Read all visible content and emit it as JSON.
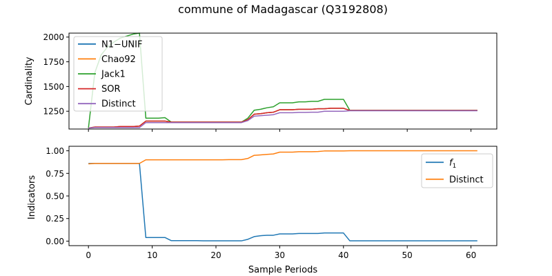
{
  "figure": {
    "title": "commune of Madagascar (Q3192808)"
  },
  "chart_data": [
    {
      "type": "line",
      "ylabel": "Cardinality",
      "xlabel": "",
      "xlim": [
        -3.05,
        64.05
      ],
      "ylim": [
        1070,
        2040
      ],
      "xticks": [
        0,
        10,
        20,
        30,
        40,
        50,
        60
      ],
      "yticks": [
        1250,
        1500,
        1750,
        2000
      ],
      "ytick_labels": [
        "1250",
        "1500",
        "1750",
        "2000"
      ],
      "show_xtick_labels": false,
      "legend_position": "upper-left",
      "x": [
        0,
        1,
        2,
        3,
        4,
        5,
        6,
        7,
        8,
        9,
        10,
        11,
        12,
        13,
        14,
        15,
        16,
        17,
        18,
        19,
        20,
        21,
        22,
        23,
        24,
        25,
        26,
        27,
        28,
        29,
        30,
        31,
        32,
        33,
        34,
        35,
        36,
        37,
        38,
        39,
        40,
        41,
        42,
        43,
        44,
        45,
        46,
        47,
        48,
        49,
        50,
        51,
        52,
        53,
        54,
        55,
        56,
        57,
        58,
        59,
        60,
        61
      ],
      "series": [
        {
          "name": "N1−UNIF",
          "color": "#1f77b4",
          "values": [
            1080,
            1090,
            1090,
            1090,
            1090,
            1095,
            1095,
            1095,
            1100,
            1150,
            1150,
            1150,
            1150,
            1140,
            1140,
            1140,
            1140,
            1140,
            1140,
            1140,
            1140,
            1140,
            1140,
            1140,
            1140,
            1165,
            1220,
            1225,
            1235,
            1240,
            1265,
            1265,
            1265,
            1270,
            1270,
            1270,
            1275,
            1275,
            1280,
            1280,
            1280,
            1258,
            1258,
            1258,
            1258,
            1258,
            1258,
            1258,
            1258,
            1258,
            1258,
            1258,
            1258,
            1258,
            1258,
            1258,
            1258,
            1258,
            1258,
            1258,
            1258,
            1258
          ]
        },
        {
          "name": "Chao92",
          "color": "#ff7f0e",
          "values": [
            1080,
            1090,
            1090,
            1090,
            1090,
            1095,
            1095,
            1095,
            1100,
            1150,
            1150,
            1150,
            1150,
            1140,
            1140,
            1140,
            1140,
            1140,
            1140,
            1140,
            1140,
            1140,
            1140,
            1140,
            1140,
            1165,
            1220,
            1225,
            1235,
            1240,
            1265,
            1265,
            1265,
            1270,
            1270,
            1270,
            1275,
            1275,
            1280,
            1280,
            1280,
            1258,
            1258,
            1258,
            1258,
            1258,
            1258,
            1258,
            1258,
            1258,
            1258,
            1258,
            1258,
            1258,
            1258,
            1258,
            1258,
            1258,
            1258,
            1258,
            1258,
            1258
          ]
        },
        {
          "name": "Jack1",
          "color": "#2ca02c",
          "values": [
            1080,
            1640,
            1820,
            1900,
            1950,
            1990,
            2010,
            2030,
            2040,
            1180,
            1180,
            1180,
            1185,
            1140,
            1140,
            1140,
            1140,
            1140,
            1140,
            1140,
            1140,
            1140,
            1140,
            1140,
            1140,
            1180,
            1260,
            1270,
            1285,
            1295,
            1335,
            1335,
            1335,
            1345,
            1345,
            1350,
            1350,
            1370,
            1370,
            1370,
            1370,
            1258,
            1258,
            1258,
            1258,
            1258,
            1258,
            1258,
            1258,
            1258,
            1258,
            1258,
            1258,
            1258,
            1258,
            1258,
            1258,
            1258,
            1258,
            1258,
            1258,
            1258
          ]
        },
        {
          "name": "SOR",
          "color": "#d62728",
          "values": [
            1080,
            1090,
            1090,
            1090,
            1090,
            1095,
            1095,
            1095,
            1100,
            1150,
            1150,
            1150,
            1150,
            1140,
            1140,
            1140,
            1140,
            1140,
            1140,
            1140,
            1140,
            1140,
            1140,
            1140,
            1140,
            1165,
            1220,
            1225,
            1235,
            1240,
            1265,
            1265,
            1265,
            1270,
            1270,
            1270,
            1275,
            1275,
            1280,
            1280,
            1280,
            1258,
            1258,
            1258,
            1258,
            1258,
            1258,
            1258,
            1258,
            1258,
            1258,
            1258,
            1258,
            1258,
            1258,
            1258,
            1258,
            1258,
            1258,
            1258,
            1258,
            1258
          ]
        },
        {
          "name": "Distinct",
          "color": "#9467bd",
          "values": [
            1080,
            1085,
            1085,
            1085,
            1085,
            1085,
            1085,
            1085,
            1085,
            1135,
            1135,
            1135,
            1135,
            1135,
            1135,
            1135,
            1135,
            1135,
            1135,
            1135,
            1135,
            1135,
            1135,
            1135,
            1135,
            1155,
            1200,
            1205,
            1210,
            1215,
            1235,
            1235,
            1235,
            1238,
            1238,
            1240,
            1240,
            1250,
            1250,
            1250,
            1250,
            1255,
            1255,
            1255,
            1255,
            1255,
            1255,
            1255,
            1255,
            1255,
            1255,
            1255,
            1255,
            1255,
            1255,
            1255,
            1255,
            1255,
            1255,
            1255,
            1255,
            1255
          ]
        }
      ]
    },
    {
      "type": "line",
      "ylabel": "Indicators",
      "xlabel": "Sample Periods",
      "xlim": [
        -3.05,
        64.05
      ],
      "ylim": [
        -0.05,
        1.05
      ],
      "xticks": [
        0,
        10,
        20,
        30,
        40,
        50,
        60
      ],
      "xtick_labels": [
        "0",
        "10",
        "20",
        "30",
        "40",
        "50",
        "60"
      ],
      "yticks": [
        0,
        0.25,
        0.5,
        0.75,
        1.0
      ],
      "ytick_labels": [
        "0.00",
        "0.25",
        "0.50",
        "0.75",
        "1.00"
      ],
      "show_xtick_labels": true,
      "legend_position": "upper-right",
      "x": [
        0,
        1,
        2,
        3,
        4,
        5,
        6,
        7,
        8,
        9,
        10,
        11,
        12,
        13,
        14,
        15,
        16,
        17,
        18,
        19,
        20,
        21,
        22,
        23,
        24,
        25,
        26,
        27,
        28,
        29,
        30,
        31,
        32,
        33,
        34,
        35,
        36,
        37,
        38,
        39,
        40,
        41,
        42,
        43,
        44,
        45,
        46,
        47,
        48,
        49,
        50,
        51,
        52,
        53,
        54,
        55,
        56,
        57,
        58,
        59,
        60,
        61
      ],
      "series": [
        {
          "name": "f1",
          "name_main": "f",
          "name_sub": "1",
          "color": "#1f77b4",
          "values": [
            0.86,
            0.86,
            0.86,
            0.86,
            0.86,
            0.86,
            0.86,
            0.86,
            0.86,
            0.04,
            0.04,
            0.04,
            0.04,
            0.005,
            0.005,
            0.005,
            0.005,
            0.005,
            0.003,
            0.003,
            0.003,
            0.003,
            0.003,
            0.003,
            0.003,
            0.02,
            0.05,
            0.06,
            0.065,
            0.065,
            0.08,
            0.08,
            0.08,
            0.085,
            0.085,
            0.085,
            0.085,
            0.09,
            0.09,
            0.09,
            0.09,
            0.003,
            0.003,
            0.003,
            0.003,
            0.003,
            0.003,
            0.003,
            0.003,
            0.003,
            0.003,
            0.003,
            0.003,
            0.003,
            0.003,
            0.003,
            0.003,
            0.003,
            0.003,
            0.003,
            0.003,
            0.003
          ]
        },
        {
          "name": "Distinct",
          "color": "#ff7f0e",
          "values": [
            0.855,
            0.86,
            0.86,
            0.86,
            0.86,
            0.86,
            0.86,
            0.86,
            0.86,
            0.9,
            0.9,
            0.9,
            0.9,
            0.9,
            0.9,
            0.9,
            0.9,
            0.9,
            0.9,
            0.9,
            0.9,
            0.9,
            0.902,
            0.902,
            0.902,
            0.915,
            0.95,
            0.955,
            0.96,
            0.965,
            0.985,
            0.985,
            0.985,
            0.99,
            0.99,
            0.99,
            0.992,
            0.998,
            0.998,
            0.998,
            0.998,
            1.0,
            1.0,
            1.0,
            1.0,
            1.0,
            1.0,
            1.0,
            1.0,
            1.0,
            1.0,
            1.0,
            1.0,
            1.0,
            1.0,
            1.0,
            1.0,
            1.0,
            1.0,
            1.0,
            1.0,
            1.0
          ]
        }
      ]
    }
  ]
}
